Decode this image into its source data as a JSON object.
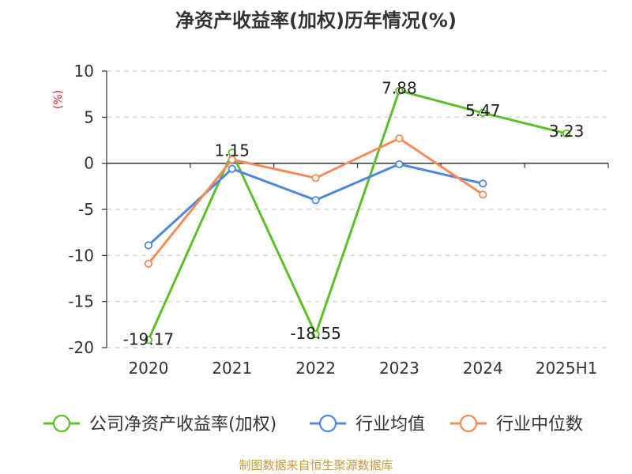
{
  "chart_data": {
    "type": "line",
    "title": "净资产收益率(加权)历年情况(%)",
    "ylabel": "(%)",
    "xlabel": "",
    "categories": [
      "2020",
      "2021",
      "2022",
      "2023",
      "2024",
      "2025H1"
    ],
    "ylim": [
      -20,
      10
    ],
    "yticks": [
      10,
      5,
      0,
      -5,
      -10,
      -15,
      -20
    ],
    "grid": true,
    "legend_position": "bottom",
    "series": [
      {
        "name": "公司净资产收益率(加权)",
        "color": "#5cbf2a",
        "values": [
          -19.17,
          1.15,
          -18.55,
          7.88,
          5.47,
          3.23
        ],
        "labels": [
          "-19.17",
          "1.15",
          "-18.55",
          "7.88",
          "5.47",
          "3.23"
        ]
      },
      {
        "name": "行业均值",
        "color": "#4f86e0",
        "values": [
          -8.9,
          -0.6,
          -4.0,
          -0.1,
          -2.2,
          null
        ]
      },
      {
        "name": "行业中位数",
        "color": "#f38c5a",
        "values": [
          -10.9,
          0.4,
          -1.6,
          2.7,
          -3.4,
          null
        ]
      }
    ]
  },
  "footer": "制图数据来自恒生聚源数据库"
}
